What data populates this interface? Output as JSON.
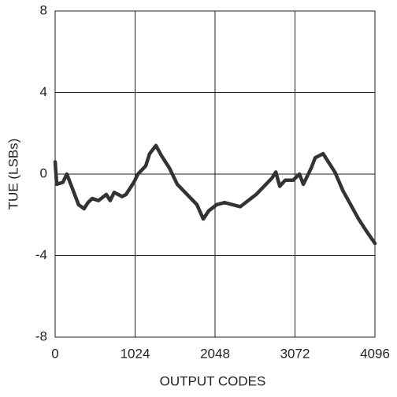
{
  "chart_data": {
    "type": "line",
    "x_label": "OUTPUT CODES",
    "y_label": "TUE (LSBs)",
    "x": [
      0,
      20,
      100,
      150,
      250,
      300,
      370,
      420,
      475,
      555,
      655,
      705,
      756,
      857,
      908,
      1009,
      1060,
      1160,
      1210,
      1291,
      1362,
      1463,
      1564,
      1715,
      1816,
      1897,
      1968,
      2069,
      2170,
      2271,
      2372,
      2473,
      2574,
      2675,
      2776,
      2826,
      2877,
      2947,
      3048,
      3129,
      3179,
      3280,
      3331,
      3432,
      3482,
      3583,
      3684,
      3785,
      3886,
      3987,
      4096
    ],
    "values": [
      0.6,
      -0.5,
      -0.4,
      0.0,
      -1.0,
      -1.5,
      -1.7,
      -1.4,
      -1.2,
      -1.3,
      -1.0,
      -1.3,
      -0.9,
      -1.1,
      -1.0,
      -0.4,
      0.0,
      0.4,
      1.0,
      1.4,
      0.9,
      0.3,
      -0.5,
      -1.1,
      -1.5,
      -2.2,
      -1.8,
      -1.5,
      -1.4,
      -1.5,
      -1.6,
      -1.3,
      -1.0,
      -0.6,
      -0.2,
      0.1,
      -0.6,
      -0.3,
      -0.3,
      0.0,
      -0.5,
      0.3,
      0.8,
      1.0,
      0.7,
      0.1,
      -0.8,
      -1.5,
      -2.2,
      -2.8,
      -3.4
    ],
    "color": "#333333",
    "xlim": [
      0,
      4096
    ],
    "xticks": [
      0,
      1024,
      2048,
      3072,
      4096
    ],
    "ylim": [
      -8,
      8
    ],
    "yticks": [
      -8,
      -4,
      0,
      4,
      8
    ],
    "grid": true
  }
}
